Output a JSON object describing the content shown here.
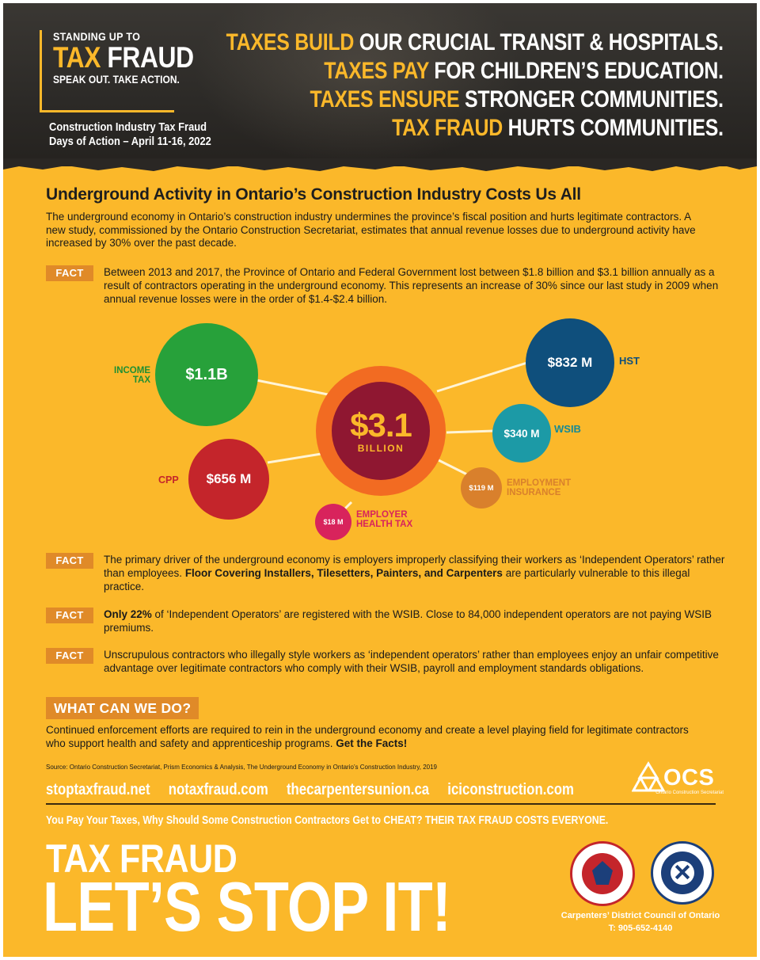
{
  "header": {
    "logo": {
      "line1": "STANDING UP TO",
      "tax": "TAX",
      "fraud": "FRAUD",
      "line3": "SPEAK OUT. TAKE ACTION."
    },
    "days_line1": "Construction Industry Tax Fraud",
    "days_line2": "Days of Action – April 11-16, 2022",
    "headlines": [
      {
        "accent": "TAXES BUILD",
        "rest": "OUR CRUCIAL TRANSIT & HOSPITALS."
      },
      {
        "accent": "TAXES PAY",
        "rest": "FOR CHILDREN’S EDUCATION."
      },
      {
        "accent": "TAXES ENSURE",
        "rest": "STRONGER COMMUNITIES."
      },
      {
        "accent": "TAX FRAUD",
        "rest": "HURTS COMMUNITIES."
      }
    ]
  },
  "main": {
    "title": "Underground Activity in Ontario’s Construction Industry Costs Us All",
    "intro": "The underground economy in Ontario’s construction industry undermines the province’s fiscal position and hurts legitimate contractors. A new study, commissioned by the Ontario Construction Secretariat, estimates that annual revenue losses due to underground activity have increased by 30% over the past decade.",
    "fact_label": "FACT",
    "fact1": "Between 2013 and 2017, the Province of Ontario and Federal Government lost between $1.8 billion and $3.1 billion annually as a result of contractors operating in the underground economy. This represents an increase of 30% since our last study in 2009 when annual revenue losses were in the order of $1.4-$2.4 billion.",
    "fact2_a": "The primary driver of the underground economy is employers improperly classifying their workers as ‘Independent Operators’ rather than employees. ",
    "fact2_b": "Floor Covering Installers, Tilesetters, Painters, and Carpenters",
    "fact2_c": " are particularly vulnerable to this illegal practice.",
    "fact3_a": "Only 22%",
    "fact3_b": " of ‘Independent Operators’ are registered with the WSIB. Close to 84,000 independent operators are not paying WSIB premiums.",
    "fact4": "Unscrupulous contractors who illegally style workers as ‘independent operators’ rather than employees enjoy an unfair competitive advantage over legitimate contractors who comply with their WSIB, payroll and employment standards obligations."
  },
  "bubbles": {
    "total_value": "$3.1",
    "total_unit": "BILLION",
    "items": [
      {
        "value": "$1.1B",
        "label_1": "INCOME",
        "label_2": "TAX",
        "color": "#27a13a",
        "label_color": "#1f9a35"
      },
      {
        "value": "$832 M",
        "label_1": "HST",
        "label_2": "",
        "color": "#0f4f7c",
        "label_color": "#0f4f7c"
      },
      {
        "value": "$340 M",
        "label_1": "WSIB",
        "label_2": "",
        "color": "#1c9aa6",
        "label_color": "#168a95"
      },
      {
        "value": "$656 M",
        "label_1": "CPP",
        "label_2": "",
        "color": "#c4252b",
        "label_color": "#c4252b"
      },
      {
        "value": "$119 M",
        "label_1": "EMPLOYMENT",
        "label_2": "INSURANCE",
        "color": "#d9802c",
        "label_color": "#d9802c"
      },
      {
        "value": "$18 M",
        "label_1": "EMPLOYER",
        "label_2": "HEALTH TAX",
        "color": "#d8235c",
        "label_color": "#d8235c"
      }
    ]
  },
  "action": {
    "heading": "WHAT CAN WE DO?",
    "text": "Continued enforcement efforts are required to rein in the underground economy and create a level playing field for legitimate contractors who support health and safety and apprenticeship programs. ",
    "text_bold": "Get the Facts!",
    "source": "Source: Ontario Construction Secretariat, Prism Economics & Analysis, The Underground Economy in Ontario’s Construction Industry, 2019",
    "links": [
      "stoptaxfraud.net",
      "notaxfraud.com",
      "thecarpentersunion.ca",
      "iciconstruction.com"
    ],
    "ocs_name": "OCS",
    "ocs_sub": "Ontario Construction Secretariat"
  },
  "footer": {
    "tagline": "You Pay Your Taxes, Why Should Some Construction Contractors Get to CHEAT?  THEIR TAX FRAUD COSTS EVERYONE.",
    "big1": "TAX FRAUD",
    "big2": "LET’S STOP IT!",
    "council": "Carpenters’ District Council of Ontario",
    "phone": "T: 905-652-4140"
  }
}
